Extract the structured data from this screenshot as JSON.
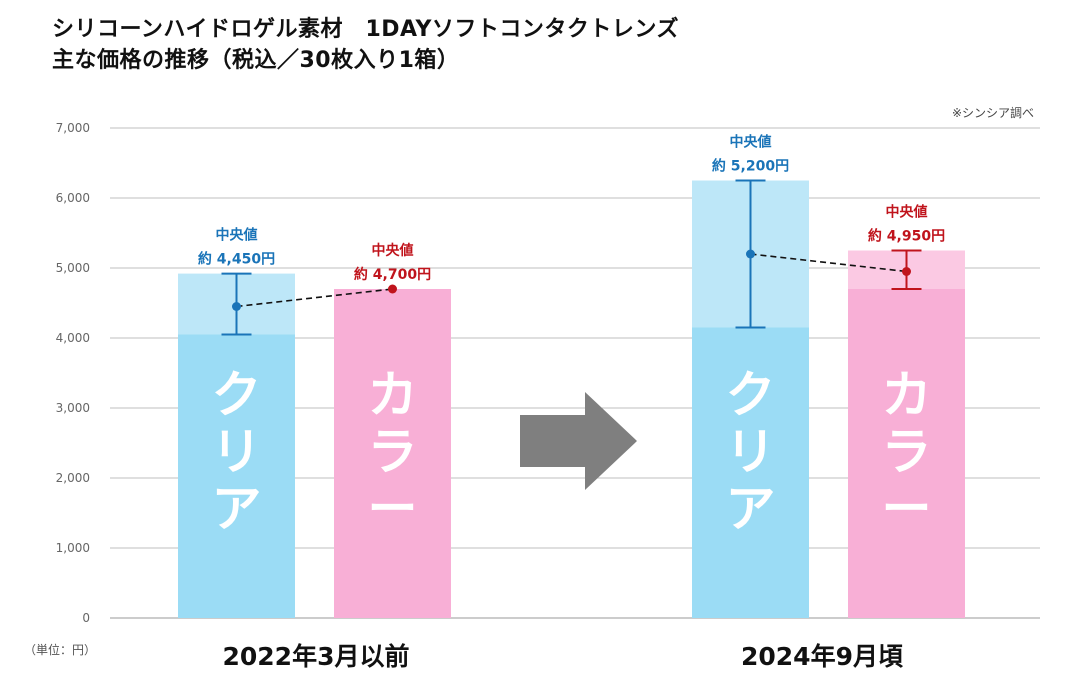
{
  "chart_data": {
    "type": "bar",
    "title_line1": "シリコーンハイドロゲル素材　1DAYソフトコンタクトレンズ",
    "title_line2": "主な価格の推移（税込／30枚入り1箱）",
    "source_note": "※シンシア調べ",
    "unit_note": "（単位：円）",
    "ylim": [
      0,
      7000
    ],
    "y_ticks": [
      0,
      1000,
      2000,
      3000,
      4000,
      5000,
      6000,
      7000
    ],
    "y_tick_labels": [
      "0",
      "1,000",
      "2,000",
      "3,000",
      "4,000",
      "5,000",
      "6,000",
      "7,000"
    ],
    "groups": [
      {
        "label": "2022年3月以前",
        "bars": [
          {
            "name": "クリア",
            "min": 4050,
            "max": 4920,
            "median": 4450,
            "median_label_1": "中央値",
            "median_label_2": "約 4,450円"
          },
          {
            "name": "カラー",
            "min": 4700,
            "max": 4700,
            "median": 4700,
            "median_label_1": "中央値",
            "median_label_2": "約 4,700円"
          }
        ]
      },
      {
        "label": "2024年9月頃",
        "bars": [
          {
            "name": "クリア",
            "min": 4150,
            "max": 6250,
            "median": 5200,
            "median_label_1": "中央値",
            "median_label_2": "約 5,200円"
          },
          {
            "name": "カラー",
            "min": 4700,
            "max": 5250,
            "median": 4950,
            "median_label_1": "中央値",
            "median_label_2": "約 4,950円"
          }
        ]
      }
    ],
    "colors": {
      "clear_dark": "#9bdcf5",
      "clear_light": "#bde7f8",
      "color_dark": "#f8afd6",
      "color_light": "#fbc9e3",
      "clear_accent": "#1a74b8",
      "color_accent": "#c0141c",
      "arrow": "#7f7f7f",
      "grid": "#bfbfbf"
    }
  }
}
